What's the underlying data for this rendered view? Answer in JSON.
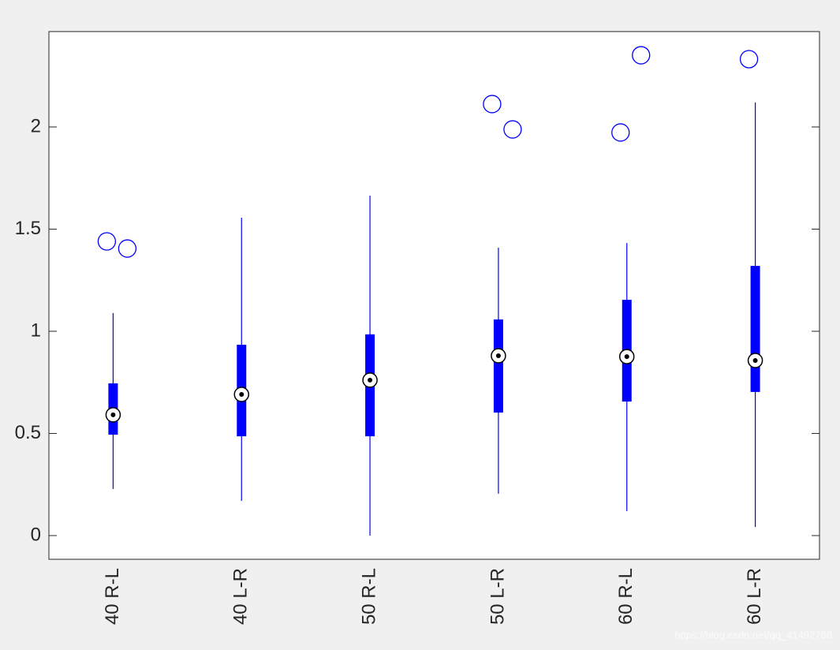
{
  "chart_data": {
    "type": "box",
    "categories": [
      "40 R-L",
      "40 L-R",
      "50 R-L",
      "50 L-R",
      "60 R-L",
      "60 L-R"
    ],
    "boxes": [
      {
        "low": 0.228,
        "q1": 0.494,
        "median": 0.591,
        "q3": 0.745,
        "high": 1.089,
        "outliers": [
          1.44,
          1.405
        ]
      },
      {
        "low": 0.17,
        "q1": 0.486,
        "median": 0.691,
        "q3": 0.934,
        "high": 1.556,
        "outliers": []
      },
      {
        "low": 0,
        "q1": 0.486,
        "median": 0.761,
        "q3": 0.985,
        "high": 1.664,
        "outliers": []
      },
      {
        "low": 0.205,
        "q1": 0.602,
        "median": 0.88,
        "q3": 1.058,
        "high": 1.409,
        "outliers": [
          2.112,
          1.988
        ]
      },
      {
        "low": 0.12,
        "q1": 0.656,
        "median": 0.876,
        "q3": 1.154,
        "high": 1.432,
        "outliers": [
          1.973,
          2.351
        ]
      },
      {
        "low": 0.042,
        "q1": 0.703,
        "median": 0.857,
        "q3": 1.32,
        "high": 2.12,
        "outliers": [
          2.332
        ]
      }
    ],
    "color": "#0000ff",
    "ylim": [
      -0.116,
      2.467
    ],
    "yticks": [
      0,
      0.5,
      1,
      1.5,
      2
    ],
    "watermark": "https://blog.csdn.net/qq_41492768"
  }
}
